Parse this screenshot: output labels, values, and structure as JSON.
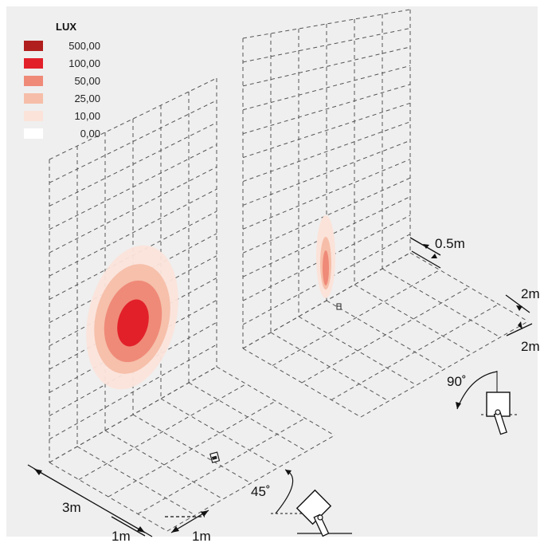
{
  "legend": {
    "title": "LUX",
    "items": [
      {
        "label": "500,00",
        "color": "#b01e1e"
      },
      {
        "label": "100,00",
        "color": "#e2202a"
      },
      {
        "label": "50,00",
        "color": "#ef8a78"
      },
      {
        "label": "25,00",
        "color": "#f6bea8"
      },
      {
        "label": "10,00",
        "color": "#fbe3da"
      },
      {
        "label": "0,00",
        "color": "#ffffff"
      }
    ]
  },
  "left_scene": {
    "tilt_angle": "45˚",
    "dim_total": "3m",
    "dim_grid": "1m",
    "dim_offset": "1m"
  },
  "right_scene": {
    "tilt_angle": "90˚",
    "dim_wall_offset": "0.5m",
    "dim_a": "2m",
    "dim_b": "2m"
  },
  "colors": {
    "background": "#efefef",
    "grid_line": "#555555"
  }
}
